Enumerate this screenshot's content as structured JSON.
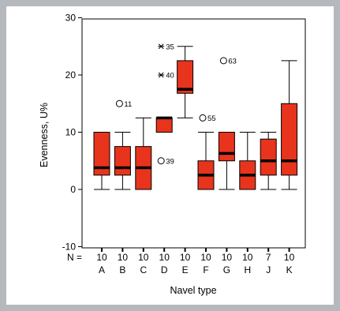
{
  "chart_data": {
    "type": "boxplot",
    "title": "",
    "xlabel": "Navel type",
    "ylabel": "Evenness, U%",
    "ylim": [
      -10,
      30
    ],
    "yticks": [
      -10,
      0,
      10,
      20,
      30
    ],
    "n_prefix": "N =",
    "box_color": "#e8341c",
    "groups": [
      {
        "category": "A",
        "n": "10",
        "min": 0,
        "q1": 2.5,
        "median": 3.8,
        "q3": 10,
        "max": 10,
        "outliers": [],
        "extremes": []
      },
      {
        "category": "B",
        "n": "10",
        "min": 0,
        "q1": 2.5,
        "median": 3.8,
        "q3": 7.5,
        "max": 10,
        "outliers": [
          {
            "value": 15,
            "label": "11"
          }
        ],
        "extremes": []
      },
      {
        "category": "C",
        "n": "10",
        "min": 0,
        "q1": 0,
        "median": 3.8,
        "q3": 7.5,
        "max": 12.5,
        "outliers": [],
        "extremes": []
      },
      {
        "category": "D",
        "n": "10",
        "min": 10,
        "q1": 10,
        "median": 12.5,
        "q3": 12.5,
        "max": 12.5,
        "outliers": [
          {
            "value": 5,
            "label": "39"
          }
        ],
        "extremes": [
          {
            "value": 25,
            "label": "35"
          },
          {
            "value": 20,
            "label": "40"
          }
        ]
      },
      {
        "category": "E",
        "n": "10",
        "min": 12.5,
        "q1": 16.8,
        "median": 17.5,
        "q3": 22.5,
        "max": 25,
        "outliers": [],
        "extremes": []
      },
      {
        "category": "F",
        "n": "10",
        "min": 0,
        "q1": 0,
        "median": 2.5,
        "q3": 5,
        "max": 10,
        "outliers": [
          {
            "value": 12.5,
            "label": "55"
          }
        ],
        "extremes": []
      },
      {
        "category": "G",
        "n": "10",
        "min": 0,
        "q1": 5,
        "median": 6.3,
        "q3": 10,
        "max": 10,
        "outliers": [
          {
            "value": 22.5,
            "label": "63"
          }
        ],
        "extremes": []
      },
      {
        "category": "H",
        "n": "10",
        "min": 0,
        "q1": 0,
        "median": 2.5,
        "q3": 5,
        "max": 10,
        "outliers": [],
        "extremes": []
      },
      {
        "category": "J",
        "n": "7",
        "min": 0,
        "q1": 2.5,
        "median": 5,
        "q3": 8.8,
        "max": 10,
        "outliers": [],
        "extremes": []
      },
      {
        "category": "K",
        "n": "10",
        "min": 0,
        "q1": 2.5,
        "median": 5,
        "q3": 15,
        "max": 22.5,
        "outliers": [],
        "extremes": []
      }
    ]
  }
}
